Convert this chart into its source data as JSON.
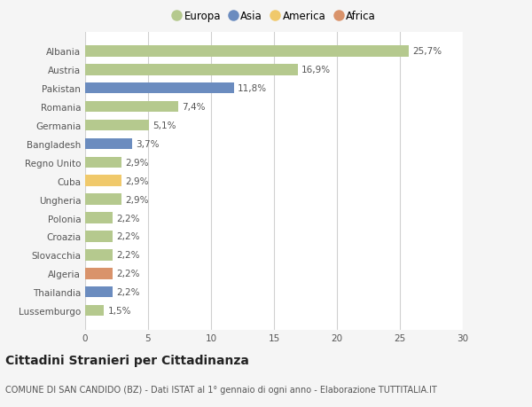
{
  "categories": [
    "Albania",
    "Austria",
    "Pakistan",
    "Romania",
    "Germania",
    "Bangladesh",
    "Regno Unito",
    "Cuba",
    "Ungheria",
    "Polonia",
    "Croazia",
    "Slovacchia",
    "Algeria",
    "Thailandia",
    "Lussemburgo"
  ],
  "values": [
    25.7,
    16.9,
    11.8,
    7.4,
    5.1,
    3.7,
    2.9,
    2.9,
    2.9,
    2.2,
    2.2,
    2.2,
    2.2,
    2.2,
    1.5
  ],
  "labels": [
    "25,7%",
    "16,9%",
    "11,8%",
    "7,4%",
    "5,1%",
    "3,7%",
    "2,9%",
    "2,9%",
    "2,9%",
    "2,2%",
    "2,2%",
    "2,2%",
    "2,2%",
    "2,2%",
    "1,5%"
  ],
  "colors": [
    "#b5c98e",
    "#b5c98e",
    "#6b8cbf",
    "#b5c98e",
    "#b5c98e",
    "#6b8cbf",
    "#b5c98e",
    "#f0c96b",
    "#b5c98e",
    "#b5c98e",
    "#b5c98e",
    "#b5c98e",
    "#d9936b",
    "#6b8cbf",
    "#b5c98e"
  ],
  "legend_names": [
    "Europa",
    "Asia",
    "America",
    "Africa"
  ],
  "legend_colors": [
    "#b5c98e",
    "#6b8cbf",
    "#f0c96b",
    "#d9936b"
  ],
  "xlim": [
    0,
    30
  ],
  "xticks": [
    0,
    5,
    10,
    15,
    20,
    25,
    30
  ],
  "title": "Cittadini Stranieri per Cittadinanza",
  "subtitle": "COMUNE DI SAN CANDIDO (BZ) - Dati ISTAT al 1° gennaio di ogni anno - Elaborazione TUTTITALIA.IT",
  "bg_color": "#f5f5f5",
  "bar_bg_color": "#ffffff",
  "grid_color": "#d0d0d0",
  "label_fontsize": 7.5,
  "tick_fontsize": 7.5,
  "title_fontsize": 10,
  "subtitle_fontsize": 7.0,
  "bar_height": 0.6
}
